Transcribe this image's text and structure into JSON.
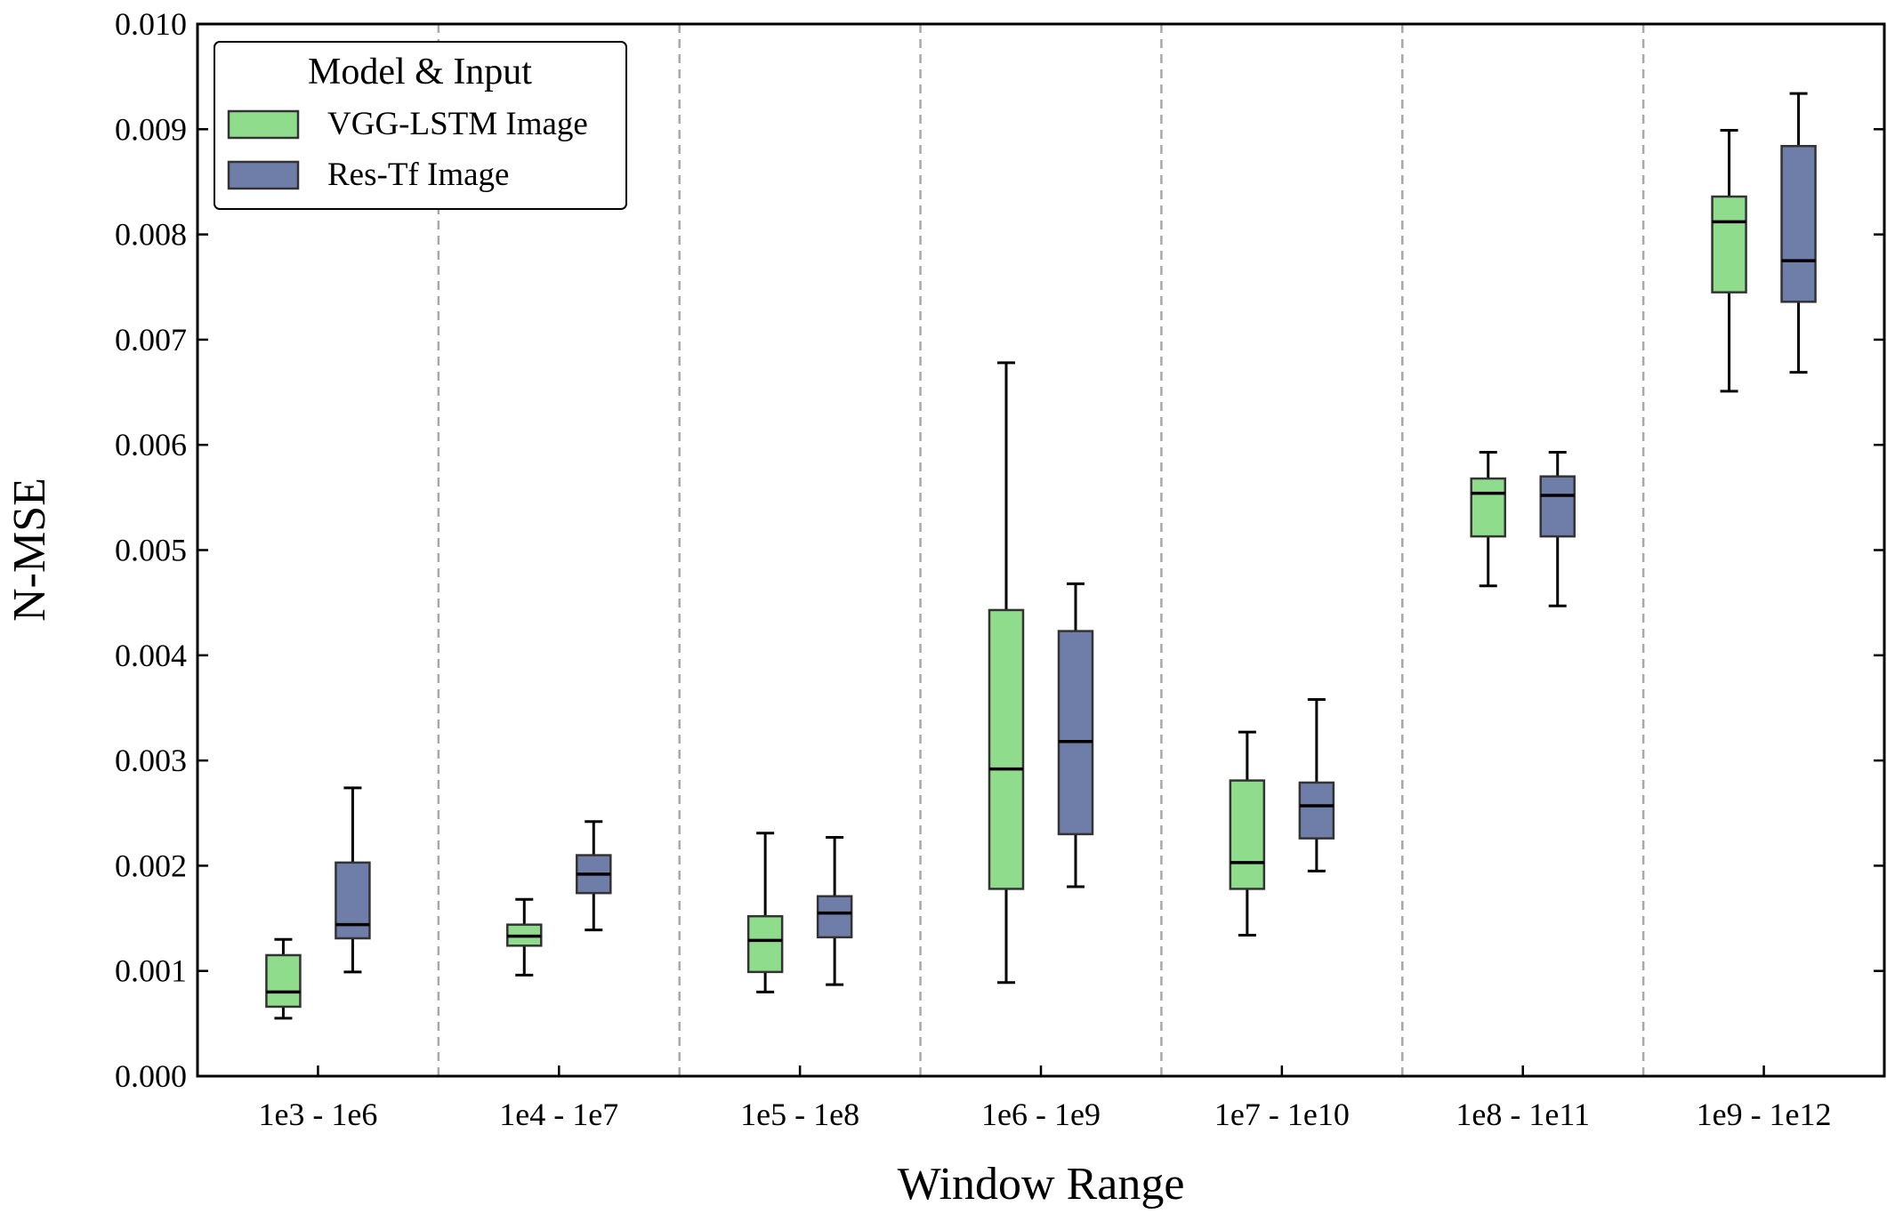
{
  "chart_data": {
    "type": "box",
    "title": "",
    "xlabel": "Window Range",
    "ylabel": "N-MSE",
    "ylim": [
      0.0,
      0.01
    ],
    "yticks": [
      "0.000",
      "0.001",
      "0.002",
      "0.003",
      "0.004",
      "0.005",
      "0.006",
      "0.007",
      "0.008",
      "0.009",
      "0.010"
    ],
    "grid": false,
    "group_separators": true,
    "categories": [
      "1e3 - 1e6",
      "1e4 - 1e7",
      "1e5 - 1e8",
      "1e6 - 1e9",
      "1e7 - 1e10",
      "1e8 - 1e11",
      "1e9 - 1e12"
    ],
    "legend": {
      "title": "Model & Input",
      "placement": "top-left"
    },
    "series": [
      {
        "name": "VGG-LSTM Image",
        "color": "#8fdc8d",
        "boxes": [
          {
            "whisker_low": 0.00055,
            "q1": 0.00066,
            "median": 0.0008,
            "q3": 0.00115,
            "whisker_high": 0.0013
          },
          {
            "whisker_low": 0.00096,
            "q1": 0.00124,
            "median": 0.00133,
            "q3": 0.00144,
            "whisker_high": 0.00168
          },
          {
            "whisker_low": 0.0008,
            "q1": 0.00099,
            "median": 0.00129,
            "q3": 0.00152,
            "whisker_high": 0.00231
          },
          {
            "whisker_low": 0.00089,
            "q1": 0.00178,
            "median": 0.00292,
            "q3": 0.00443,
            "whisker_high": 0.00678
          },
          {
            "whisker_low": 0.00134,
            "q1": 0.00178,
            "median": 0.00203,
            "q3": 0.00281,
            "whisker_high": 0.00327
          },
          {
            "whisker_low": 0.00466,
            "q1": 0.00513,
            "median": 0.00554,
            "q3": 0.00568,
            "whisker_high": 0.00593
          },
          {
            "whisker_low": 0.00651,
            "q1": 0.00745,
            "median": 0.00812,
            "q3": 0.00836,
            "whisker_high": 0.00899
          }
        ]
      },
      {
        "name": "Res-Tf Image",
        "color": "#6e7ea9",
        "boxes": [
          {
            "whisker_low": 0.00099,
            "q1": 0.00131,
            "median": 0.00144,
            "q3": 0.00203,
            "whisker_high": 0.00274
          },
          {
            "whisker_low": 0.00139,
            "q1": 0.00174,
            "median": 0.00192,
            "q3": 0.0021,
            "whisker_high": 0.00242
          },
          {
            "whisker_low": 0.00087,
            "q1": 0.00132,
            "median": 0.00155,
            "q3": 0.00171,
            "whisker_high": 0.00227
          },
          {
            "whisker_low": 0.0018,
            "q1": 0.0023,
            "median": 0.00318,
            "q3": 0.00423,
            "whisker_high": 0.00468
          },
          {
            "whisker_low": 0.00195,
            "q1": 0.00226,
            "median": 0.00257,
            "q3": 0.00279,
            "whisker_high": 0.00358
          },
          {
            "whisker_low": 0.00447,
            "q1": 0.00513,
            "median": 0.00552,
            "q3": 0.0057,
            "whisker_high": 0.00593
          },
          {
            "whisker_low": 0.00669,
            "q1": 0.00736,
            "median": 0.00775,
            "q3": 0.00884,
            "whisker_high": 0.00934
          }
        ]
      }
    ]
  }
}
